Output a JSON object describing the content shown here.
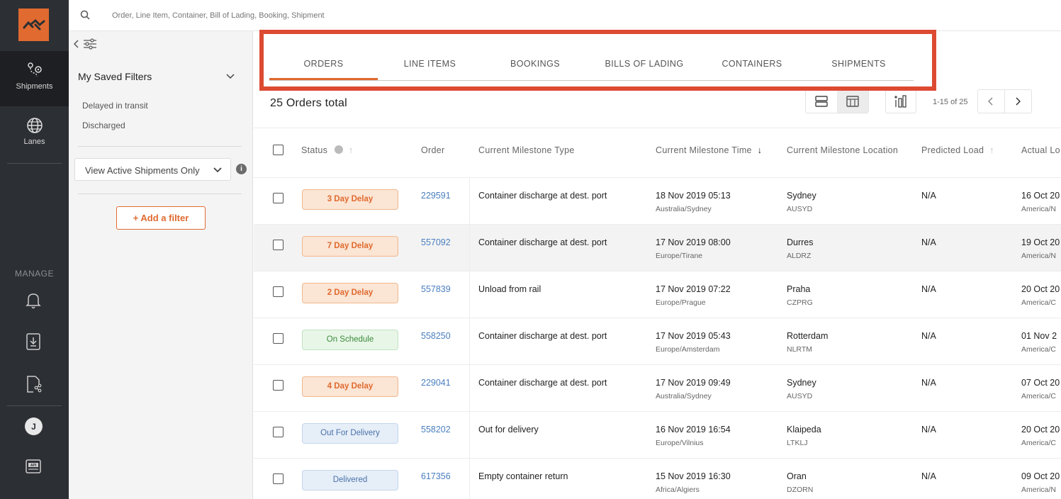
{
  "search": {
    "placeholder": "Order, Line Item, Container, Bill of Lading, Booking, Shipment"
  },
  "nav": {
    "shipments_label": "Shipments",
    "lanes_label": "Lanes",
    "manage_label": "MANAGE",
    "avatar_initial": "J",
    "api_label": "API"
  },
  "filters": {
    "saved_title": "My Saved Filters",
    "saved_items": [
      "Delayed in transit",
      "Discharged"
    ],
    "active_select": "View Active Shipments Only",
    "add_filter": "+ Add a filter"
  },
  "tabs": [
    "ORDERS",
    "LINE ITEMS",
    "BOOKINGS",
    "BILLS OF LADING",
    "CONTAINERS",
    "SHIPMENTS"
  ],
  "summary": {
    "total": "25 Orders total",
    "pagination": "1-15 of 25"
  },
  "table": {
    "headers": {
      "status": "Status",
      "order": "Order",
      "milestone_type": "Current Milestone Type",
      "milestone_time": "Current Milestone Time",
      "milestone_location": "Current Milestone Location",
      "predicted_load": "Predicted Load",
      "actual_load": "Actual Lo"
    },
    "rows": [
      {
        "status": "3 Day Delay",
        "order": "229591",
        "type": "Container discharge at dest. port",
        "time": "18 Nov 2019 05:13",
        "tz": "Australia/Sydney",
        "loc": "Sydney",
        "code": "AUSYD",
        "pred": "N/A",
        "actual": "16 Oct 20",
        "actual_tz": "America/N"
      },
      {
        "status": "7 Day Delay",
        "order": "557092",
        "type": "Container discharge at dest. port",
        "time": "17 Nov 2019 08:00",
        "tz": "Europe/Tirane",
        "loc": "Durres",
        "code": "ALDRZ",
        "pred": "N/A",
        "actual": "19 Oct 20",
        "actual_tz": "America/N"
      },
      {
        "status": "2 Day Delay",
        "order": "557839",
        "type": "Unload from rail",
        "time": "17 Nov 2019 07:22",
        "tz": "Europe/Prague",
        "loc": "Praha",
        "code": "CZPRG",
        "pred": "N/A",
        "actual": "20 Oct 20",
        "actual_tz": "America/C"
      },
      {
        "status": "On Schedule",
        "order": "558250",
        "type": "Container discharge at dest. port",
        "time": "17 Nov 2019 05:43",
        "tz": "Europe/Amsterdam",
        "loc": "Rotterdam",
        "code": "NLRTM",
        "pred": "N/A",
        "actual": "01 Nov 2",
        "actual_tz": "America/C"
      },
      {
        "status": "4 Day Delay",
        "order": "229041",
        "type": "Container discharge at dest. port",
        "time": "17 Nov 2019 09:49",
        "tz": "Australia/Sydney",
        "loc": "Sydney",
        "code": "AUSYD",
        "pred": "N/A",
        "actual": "07 Oct 20",
        "actual_tz": "America/C"
      },
      {
        "status": "Out For Delivery",
        "order": "558202",
        "type": "Out for delivery",
        "time": "16 Nov 2019 16:54",
        "tz": "Europe/Vilnius",
        "loc": "Klaipeda",
        "code": "LTKLJ",
        "pred": "N/A",
        "actual": "20 Oct 20",
        "actual_tz": "America/C"
      },
      {
        "status": "Delivered",
        "order": "617356",
        "type": "Empty container return",
        "time": "15 Nov 2019 16:30",
        "tz": "Africa/Algiers",
        "loc": "Oran",
        "code": "DZORN",
        "pred": "N/A",
        "actual": "09 Oct 20",
        "actual_tz": "America/N"
      }
    ]
  },
  "colors": {
    "accent": "#e06a2f",
    "highlight": "#dc4a32",
    "nav_bg": "#2c2f33",
    "link": "#4a7fc0"
  }
}
